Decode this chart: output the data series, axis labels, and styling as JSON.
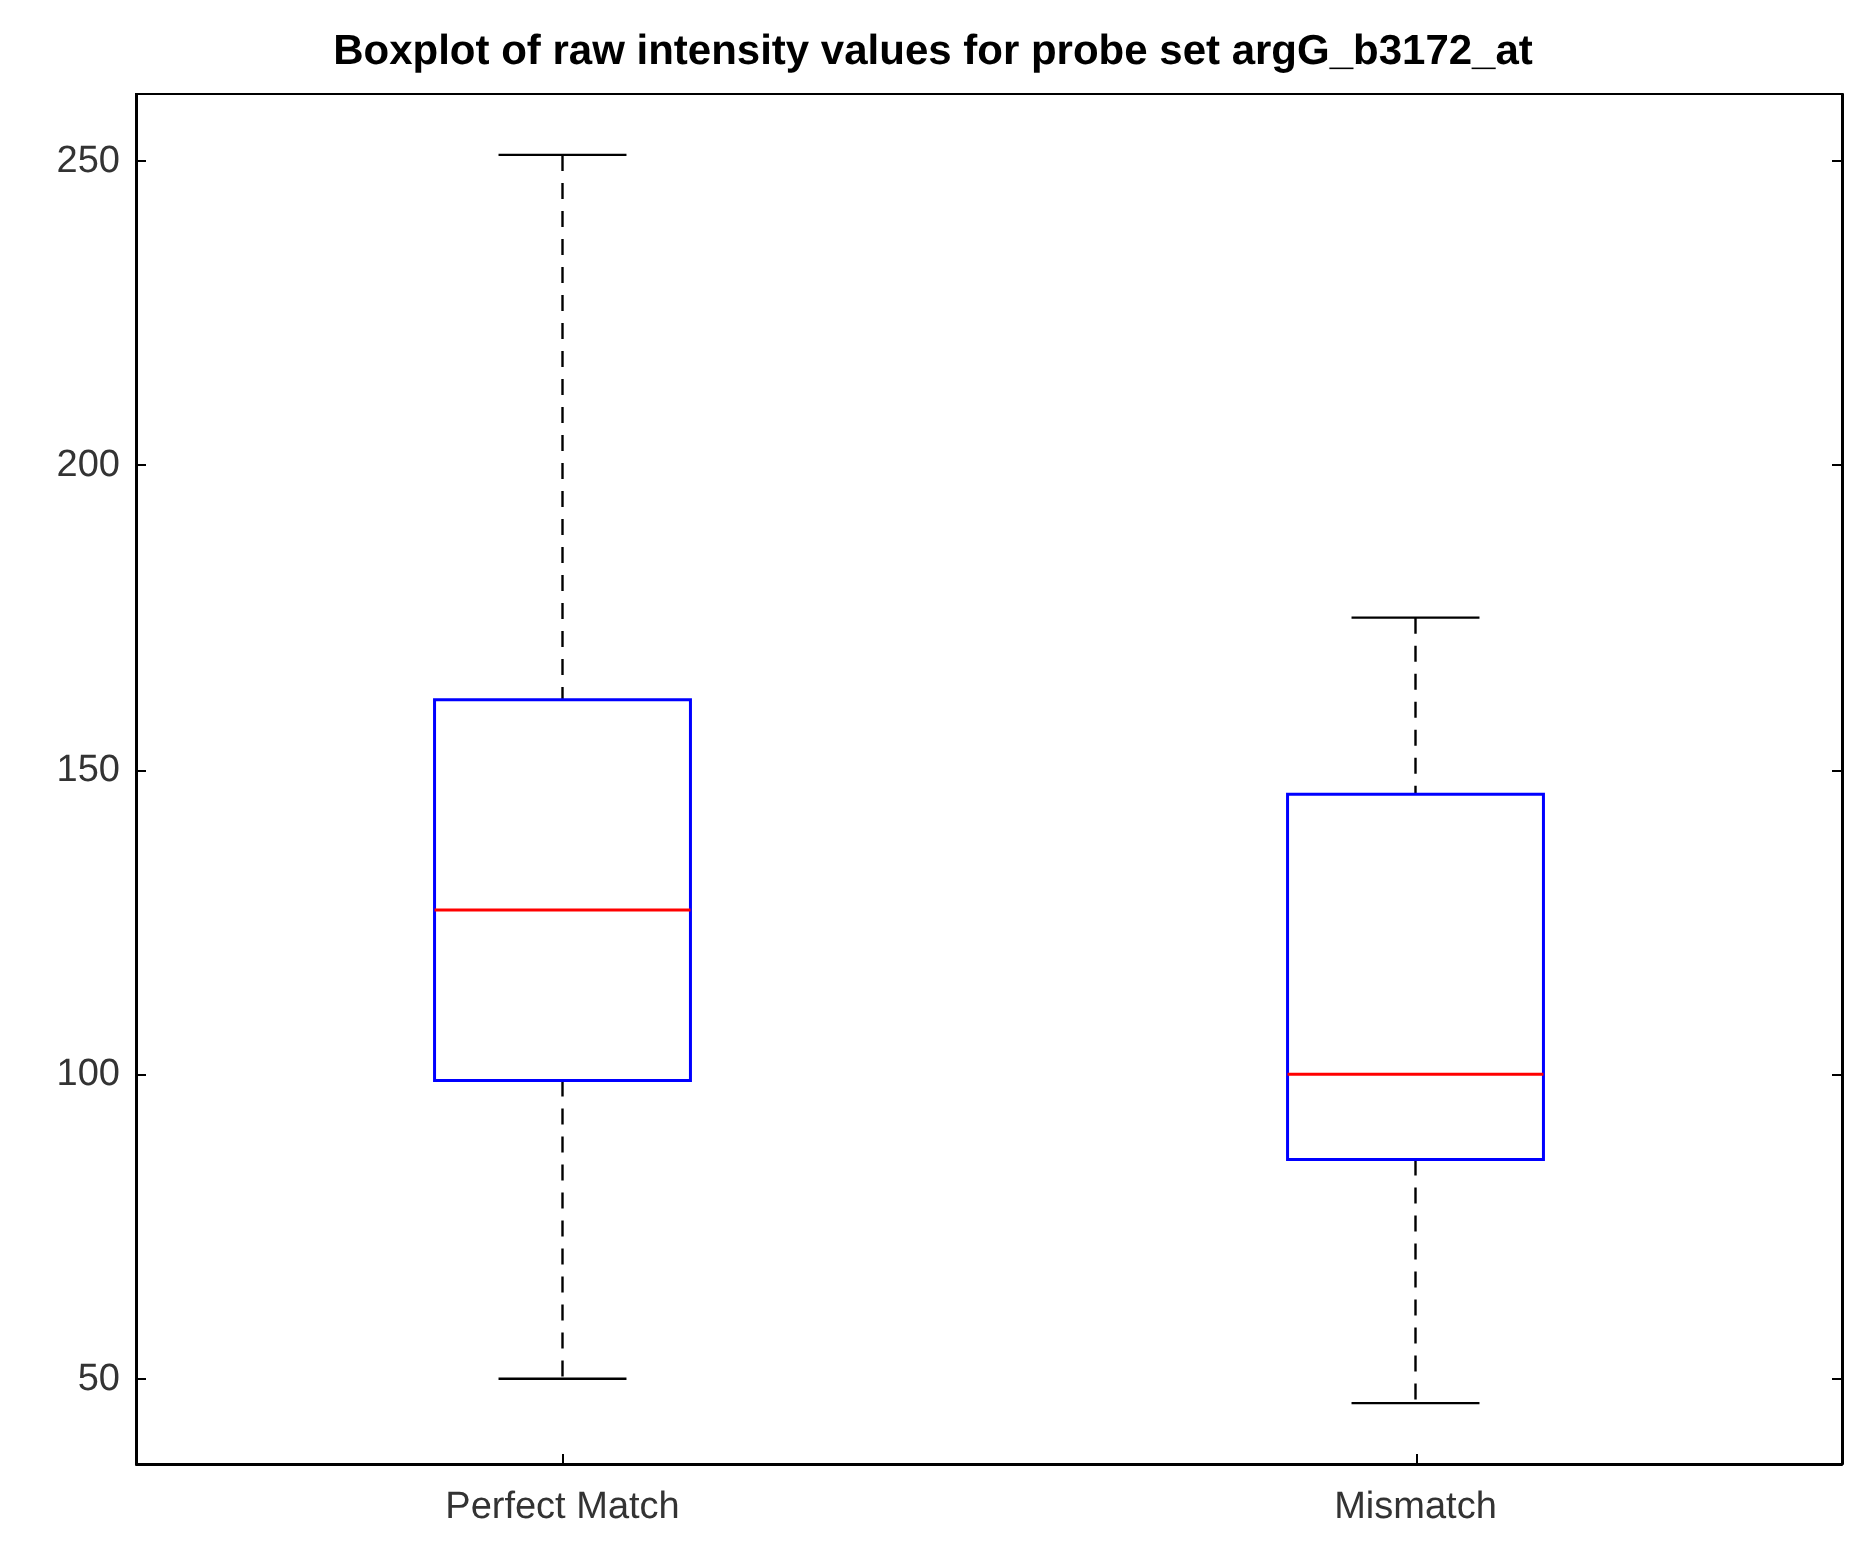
{
  "chart_data": {
    "type": "box",
    "title": "Boxplot of raw intensity values for probe set argG_b3172_at",
    "categories": [
      "Perfect Match",
      "Mismatch"
    ],
    "color": "#0000ff",
    "boxes": [
      {
        "low": 50,
        "q1": 99,
        "median": 127,
        "q3": 161.5,
        "high": 251
      },
      {
        "low": 46,
        "q1": 86,
        "median": 100,
        "q3": 146,
        "high": 175
      }
    ],
    "ylim": [
      36,
      261
    ],
    "yticks": [
      50,
      100,
      150,
      200,
      250
    ],
    "grid": false
  }
}
